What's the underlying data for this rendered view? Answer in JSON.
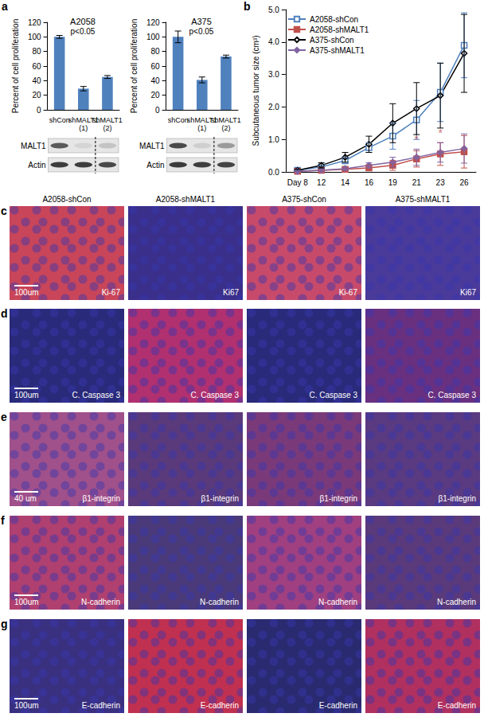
{
  "panel_labels": [
    "a",
    "b"
  ],
  "chart_data": [
    {
      "type": "bar",
      "title": "A2058",
      "subtitle": "p<0.05",
      "y_label": "Percent of cell proliferation",
      "categories": [
        "shCon",
        "shMALT1\n(1)",
        "shMALT1\n(2)"
      ],
      "values": [
        100,
        29,
        45
      ],
      "errors": [
        2,
        3,
        2
      ],
      "color": "#4f81bd",
      "ylim": [
        0,
        120
      ],
      "yticks": [
        0,
        20,
        40,
        60,
        80,
        100,
        120
      ],
      "grid": false,
      "blot": {
        "rows": [
          {
            "label": "MALT1",
            "colors": [
              "#5a5a5a",
              "#d4d4d4",
              "#c4c4c4"
            ]
          },
          {
            "label": "Actin",
            "colors": [
              "#3c3c3c",
              "#3c3c3c",
              "#484848"
            ]
          }
        ]
      }
    },
    {
      "type": "bar",
      "title": "A375",
      "subtitle": "p<0.05",
      "y_label": "Percent of cell proliferation",
      "categories": [
        "shCon",
        "shMALT1\n(1)",
        "shMALT1\n(2)"
      ],
      "values": [
        100,
        41,
        73
      ],
      "errors": [
        8,
        4,
        2
      ],
      "color": "#4f81bd",
      "ylim": [
        0,
        120
      ],
      "yticks": [
        0,
        20,
        40,
        60,
        80,
        100,
        120
      ],
      "grid": false,
      "blot": {
        "rows": [
          {
            "label": "MALT1",
            "colors": [
              "#4a4a4a",
              "#cfcfcf",
              "#9a9a9a"
            ]
          },
          {
            "label": "Actin",
            "colors": [
              "#3a3a3a",
              "#3e3e3e",
              "#444444"
            ]
          }
        ]
      }
    },
    {
      "type": "line",
      "y_label": "Subcutaneous tumor size (cm³)",
      "categories": [
        "Day 8",
        "12",
        "14",
        "16",
        "19",
        "21",
        "23",
        "26"
      ],
      "series": [
        {
          "name": "A2058-shCon",
          "color": "#4f81bd",
          "marker": "square-open",
          "values": [
            0.05,
            0.15,
            0.35,
            0.75,
            1.1,
            1.6,
            2.45,
            3.9
          ],
          "errors": [
            0.02,
            0.05,
            0.1,
            0.15,
            0.4,
            0.6,
            0.9,
            1.0
          ]
        },
        {
          "name": "A2058-shMALT1",
          "color": "#c0504d",
          "marker": "square",
          "values": [
            0.02,
            0.05,
            0.08,
            0.12,
            0.2,
            0.4,
            0.55,
            0.62
          ],
          "errors": [
            0.01,
            0.03,
            0.05,
            0.08,
            0.15,
            0.25,
            0.35,
            0.5
          ]
        },
        {
          "name": "A375-shCon",
          "color": "#000000",
          "marker": "diamond-open",
          "values": [
            0.05,
            0.2,
            0.45,
            0.85,
            1.5,
            1.95,
            2.35,
            3.65
          ],
          "errors": [
            0.03,
            0.08,
            0.15,
            0.25,
            0.6,
            0.8,
            1.0,
            1.2
          ]
        },
        {
          "name": "A375-shMALT1",
          "color": "#8064a2",
          "marker": "diamond",
          "values": [
            0.02,
            0.05,
            0.1,
            0.2,
            0.3,
            0.45,
            0.6,
            0.72
          ],
          "errors": [
            0.01,
            0.03,
            0.05,
            0.08,
            0.15,
            0.25,
            0.3,
            0.45
          ]
        }
      ],
      "ylim": [
        0,
        5
      ],
      "yticks": [
        {
          "value": 0,
          "label": "0.0"
        },
        {
          "value": 1,
          "label": "1.0"
        },
        {
          "value": 2,
          "label": "2.0"
        },
        {
          "value": 3,
          "label": "3.0"
        },
        {
          "value": 4,
          "label": "4.0"
        },
        {
          "value": 5,
          "label": "5.0"
        }
      ],
      "grid": false,
      "legend": "top-left",
      "annotations": [
        {
          "x": "21",
          "y": 1.0,
          "text": "*",
          "color": "#c0504d"
        },
        {
          "x": "23",
          "y": 1.2,
          "text": "*",
          "color": "#c0504d"
        }
      ]
    }
  ],
  "image_panels": {
    "columns": [
      "A2058-shCon",
      "A2058-shMALT1",
      "A375-shCon",
      "A375-shMALT1"
    ],
    "rows": [
      {
        "label": "c",
        "scale_bar": "100um",
        "cells": [
          {
            "stain": "Ki-67",
            "color": "#c8455a"
          },
          {
            "stain": "Ki67",
            "color": "#3a2f8a"
          },
          {
            "stain": "Ki-67",
            "color": "#c84a6a"
          },
          {
            "stain": "Ki67",
            "color": "#4a3a9a"
          }
        ]
      },
      {
        "label": "d",
        "scale_bar": "100um",
        "cells": [
          {
            "stain": "C. Caspase 3",
            "color": "#2a2a7a"
          },
          {
            "stain": "C. Caspase 3",
            "color": "#b03070"
          },
          {
            "stain": "C. Caspase 3",
            "color": "#2a2a7a"
          },
          {
            "stain": "C. Caspase 3",
            "color": "#6a3080"
          }
        ]
      },
      {
        "label": "e",
        "scale_bar": "40 um",
        "cells": [
          {
            "stain": "β1-integrin",
            "color": "#a0508a"
          },
          {
            "stain": "β1-integrin",
            "color": "#5a3a7a"
          },
          {
            "stain": "β1-integrin",
            "color": "#7a3a7a"
          },
          {
            "stain": "β1-integrin",
            "color": "#5a3a80"
          }
        ]
      },
      {
        "label": "f",
        "scale_bar": "100um",
        "cells": [
          {
            "stain": "N-cadherin",
            "color": "#b04070"
          },
          {
            "stain": "N-cadherin",
            "color": "#4a3a7a"
          },
          {
            "stain": "N-cadherin",
            "color": "#a04080"
          },
          {
            "stain": "N-cadherin",
            "color": "#5a3a7a"
          }
        ]
      },
      {
        "label": "g",
        "scale_bar": "100um",
        "cells": [
          {
            "stain": "E-cadherin",
            "color": "#3a3080"
          },
          {
            "stain": "E-cadherin",
            "color": "#c03050"
          },
          {
            "stain": "E-cadherin",
            "color": "#2a2a70"
          },
          {
            "stain": "E-cadherin",
            "color": "#b03060"
          }
        ]
      }
    ]
  }
}
